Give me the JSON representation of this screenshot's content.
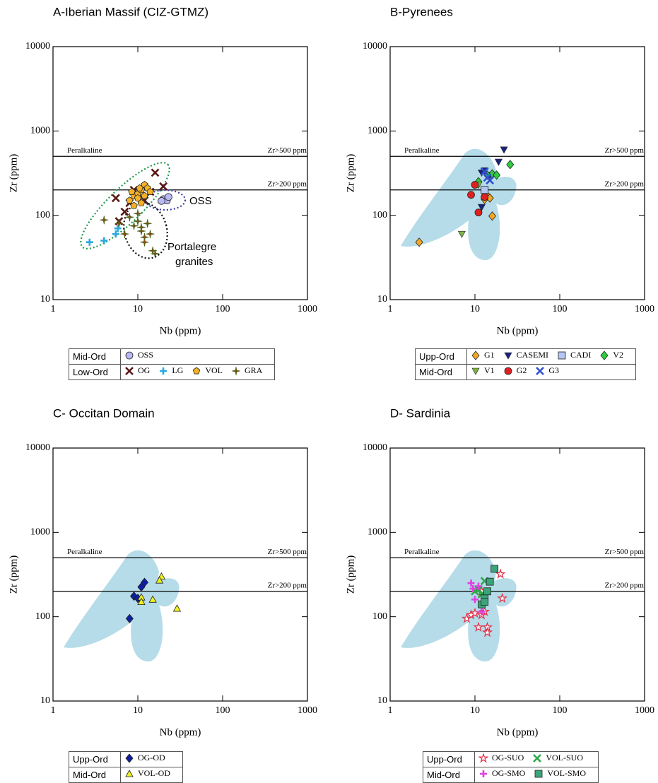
{
  "chart_data": [
    {
      "type": "scatter",
      "title": "A-Iberian Massif (CIZ-GTMZ)",
      "x_label": "Nb (ppm)",
      "y_label": "Zr (ppm)",
      "log_x": true,
      "log_y": true,
      "xlim": [
        1,
        1000
      ],
      "ylim": [
        10,
        10000
      ],
      "xticks": [
        1,
        10,
        100,
        1000
      ],
      "yticks": [
        10,
        100,
        1000,
        10000
      ],
      "reference_note": "Peralkaline",
      "reference_lines": [
        {
          "value": 500,
          "label": "Zr>500 ppm"
        },
        {
          "value": 200,
          "label": "Zr>200 ppm"
        }
      ],
      "field": false,
      "annotations": [
        "OSS",
        "Portalegre",
        "granites"
      ],
      "series_groups": [
        {
          "label": "Mid-Ord",
          "series": [
            {
              "name": "OSS",
              "marker": "circle",
              "color": "#b8b8f4",
              "x": [
                20,
                22,
                19,
                23
              ],
              "y": [
                155,
                150,
                148,
                165
              ]
            }
          ]
        },
        {
          "label": "Low-Ord",
          "series": [
            {
              "name": "OG",
              "marker": "x",
              "color": "#5a1818",
              "x": [
                5.5,
                6,
                8,
                9,
                10,
                16,
                20,
                12,
                7,
                14
              ],
              "y": [
                160,
                85,
                140,
                200,
                180,
                320,
                220,
                150,
                110,
                190
              ]
            },
            {
              "name": "LG",
              "marker": "plus",
              "color": "#29a8e0",
              "x": [
                2.7,
                4,
                5.5,
                5.8
              ],
              "y": [
                48,
                50,
                60,
                70
              ]
            },
            {
              "name": "VOL",
              "marker": "pentagon",
              "color": "#f5b324",
              "x": [
                8,
                9,
                10,
                11,
                12,
                13,
                10,
                9,
                11,
                14,
                8.5,
                12,
                10.5
              ],
              "y": [
                150,
                170,
                180,
                200,
                230,
                210,
                160,
                130,
                140,
                190,
                190,
                170,
                210
              ]
            },
            {
              "name": "GRA",
              "marker": "star4",
              "color": "#8a4a14",
              "x": [
                4,
                6,
                7,
                8,
                9,
                10,
                11,
                12,
                13,
                14,
                15,
                12,
                11,
                10,
                16
              ],
              "y": [
                88,
                80,
                60,
                95,
                75,
                85,
                65,
                55,
                80,
                60,
                38,
                48,
                72,
                105,
                35
              ]
            }
          ]
        }
      ]
    },
    {
      "type": "scatter",
      "title": "B-Pyrenees",
      "x_label": "Nb (ppm)",
      "y_label": "Zr (ppm)",
      "log_x": true,
      "log_y": true,
      "xlim": [
        1,
        1000
      ],
      "ylim": [
        10,
        10000
      ],
      "xticks": [
        1,
        10,
        100,
        1000
      ],
      "yticks": [
        10,
        100,
        1000,
        10000
      ],
      "reference_note": "Peralkaline",
      "reference_lines": [
        {
          "value": 500,
          "label": "Zr>500 ppm"
        },
        {
          "value": 200,
          "label": "Zr>200 ppm"
        }
      ],
      "field": true,
      "series_groups": [
        {
          "label": "Upp-Ord",
          "series": [
            {
              "name": "G1",
              "marker": "diamond",
              "color": "#f5a623",
              "x": [
                2.2,
                13,
                14,
                16,
                13,
                15
              ],
              "y": [
                48,
                155,
                170,
                98,
                190,
                160
              ]
            },
            {
              "name": "CASEMI",
              "marker": "tri-down",
              "color": "#1a237e",
              "x": [
                22,
                19,
                12,
                12,
                13,
                15
              ],
              "y": [
                600,
                430,
                125,
                320,
                340,
                300
              ]
            },
            {
              "name": "CADI",
              "marker": "square",
              "color": "#b4c6f2",
              "x": [
                13
              ],
              "y": [
                200
              ]
            },
            {
              "name": "V2",
              "marker": "diamond",
              "color": "#2ecc40",
              "x": [
                26,
                16,
                14,
                11,
                18
              ],
              "y": [
                400,
                310,
                300,
                250,
                300
              ]
            }
          ]
        },
        {
          "label": "Mid-Ord",
          "series": [
            {
              "name": "V1",
              "marker": "tri-down",
              "color": "#7cb342",
              "x": [
                7,
                11
              ],
              "y": [
                60,
                230
              ]
            },
            {
              "name": "G2",
              "marker": "circle",
              "color": "#e02020",
              "x": [
                11,
                9,
                10,
                13
              ],
              "y": [
                108,
                175,
                230,
                165
              ]
            },
            {
              "name": "G3",
              "marker": "x",
              "color": "#3050d0",
              "x": [
                14,
                13,
                15
              ],
              "y": [
                280,
                330,
                260
              ]
            }
          ]
        }
      ]
    },
    {
      "type": "scatter",
      "title": "C- Occitan Domain",
      "x_label": "Nb (ppm)",
      "y_label": "Zr (ppm)",
      "log_x": true,
      "log_y": true,
      "xlim": [
        1,
        1000
      ],
      "ylim": [
        10,
        10000
      ],
      "xticks": [
        1,
        10,
        100,
        1000
      ],
      "yticks": [
        10,
        100,
        1000,
        10000
      ],
      "reference_note": "Peralkaline",
      "reference_lines": [
        {
          "value": 500,
          "label": "Zr>500 ppm"
        },
        {
          "value": 200,
          "label": "Zr>200 ppm"
        }
      ],
      "field": true,
      "series_groups": [
        {
          "label": "Upp-Ord",
          "series": [
            {
              "name": "OG-OD",
              "marker": "diamond",
              "color": "#0d1fa0",
              "x": [
                8,
                9,
                11,
                12,
                10
              ],
              "y": [
                95,
                175,
                225,
                255,
                165
              ]
            }
          ]
        },
        {
          "label": "Mid-Ord",
          "series": [
            {
              "name": "VOL-OD",
              "marker": "tri-up",
              "color": "#f0f020",
              "x": [
                11,
                11,
                15,
                19,
                18,
                29
              ],
              "y": [
                170,
                150,
                160,
                300,
                270,
                125
              ]
            }
          ]
        }
      ]
    },
    {
      "type": "scatter",
      "title": "D- Sardinia",
      "x_label": "Nb (ppm)",
      "y_label": "Zr (ppm)",
      "log_x": true,
      "log_y": true,
      "xlim": [
        1,
        1000
      ],
      "ylim": [
        10,
        10000
      ],
      "xticks": [
        1,
        10,
        100,
        1000
      ],
      "yticks": [
        10,
        100,
        1000,
        10000
      ],
      "reference_note": "Peralkaline",
      "reference_lines": [
        {
          "value": 500,
          "label": "Zr>500 ppm"
        },
        {
          "value": 200,
          "label": "Zr>200 ppm"
        }
      ],
      "field": true,
      "series_groups": [
        {
          "label": "Upp-Ord",
          "series": [
            {
              "name": "OG-SUO",
              "marker": "star5",
              "color": "#e0304a",
              "x": [
                8,
                9,
                10,
                11,
                12,
                13,
                14,
                14,
                20,
                21,
                12
              ],
              "y": [
                95,
                105,
                110,
                75,
                105,
                115,
                75,
                65,
                320,
                165,
                200
              ]
            },
            {
              "name": "VOL-SUO",
              "marker": "x",
              "color": "#2ea84a",
              "x": [
                10,
                11,
                13,
                12
              ],
              "y": [
                200,
                210,
                265,
                185
              ]
            }
          ]
        },
        {
          "label": "Mid-Ord",
          "series": [
            {
              "name": "OG-SMO",
              "marker": "plus",
              "color": "#e040e0",
              "x": [
                9,
                10,
                9.5,
                11,
                12
              ],
              "y": [
                250,
                160,
                215,
                230,
                115
              ]
            },
            {
              "name": "VOL-SMO",
              "marker": "square",
              "color": "#3aa57a",
              "x": [
                17,
                15,
                13,
                12,
                14,
                13
              ],
              "y": [
                370,
                260,
                165,
                140,
                200,
                150
              ]
            }
          ]
        }
      ]
    }
  ]
}
